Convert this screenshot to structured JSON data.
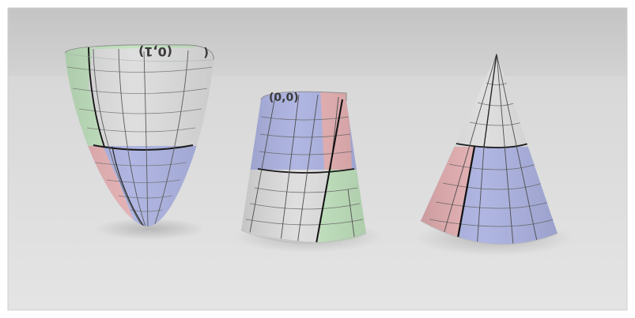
{
  "scene": {
    "background_top": "#c9c9c9",
    "floor_color": "#dedede",
    "frame_border": "#cfcfcf",
    "surfaces": [
      {
        "shape": "paraboloid",
        "label": "(0,1)"
      },
      {
        "shape": "truncated-cone",
        "label": "(0,0)"
      },
      {
        "shape": "cone",
        "label": ""
      }
    ],
    "patch_colors": {
      "green": "#bfe1bc",
      "gray": "#dcdcdc",
      "blue": "#a9b0df",
      "red": "#e3adb0"
    }
  }
}
